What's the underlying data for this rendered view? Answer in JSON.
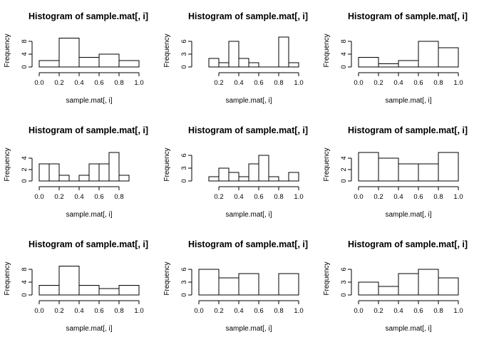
{
  "chart_data": [
    {
      "type": "bar",
      "title": "Histogram of sample.mat[, i]",
      "xlabel": "sample.mat[, i]",
      "ylabel": "Frequency",
      "breaks": [
        0.0,
        0.2,
        0.4,
        0.6,
        0.8,
        1.0
      ],
      "values": [
        2,
        9,
        3,
        4,
        2
      ],
      "x_ticks": [
        0.0,
        0.2,
        0.4,
        0.6,
        0.8,
        1.0
      ],
      "x_tick_labels": [
        "0.0",
        "0.2",
        "0.4",
        "0.6",
        "0.8",
        "1.0"
      ],
      "y_ticks": [
        0,
        4,
        8
      ],
      "y_tick_labels": [
        "0",
        "4",
        "8"
      ]
    },
    {
      "type": "bar",
      "title": "Histogram of sample.mat[, i]",
      "xlabel": "sample.mat[, i]",
      "ylabel": "Frequency",
      "breaks": [
        0.1,
        0.2,
        0.3,
        0.4,
        0.5,
        0.6,
        0.7,
        0.8,
        0.9,
        1.0
      ],
      "values": [
        2,
        1,
        6,
        2,
        1,
        0,
        0,
        7,
        1
      ],
      "x_ticks": [
        0.2,
        0.4,
        0.6,
        0.8,
        1.0
      ],
      "x_tick_labels": [
        "0.2",
        "0.4",
        "0.6",
        "0.8",
        "1.0"
      ],
      "y_ticks": [
        0,
        3,
        6
      ],
      "y_tick_labels": [
        "0",
        "3",
        "6"
      ]
    },
    {
      "type": "bar",
      "title": "Histogram of sample.mat[, i]",
      "xlabel": "sample.mat[, i]",
      "ylabel": "Frequency",
      "breaks": [
        0.0,
        0.2,
        0.4,
        0.6,
        0.8,
        1.0
      ],
      "values": [
        3,
        1,
        2,
        8,
        6
      ],
      "x_ticks": [
        0.0,
        0.2,
        0.4,
        0.6,
        0.8,
        1.0
      ],
      "x_tick_labels": [
        "0.0",
        "0.2",
        "0.4",
        "0.6",
        "0.8",
        "1.0"
      ],
      "y_ticks": [
        0,
        4,
        8
      ],
      "y_tick_labels": [
        "0",
        "4",
        "8"
      ]
    },
    {
      "type": "bar",
      "title": "Histogram of sample.mat[, i]",
      "xlabel": "sample.mat[, i]",
      "ylabel": "Frequency",
      "breaks": [
        0.0,
        0.1,
        0.2,
        0.3,
        0.4,
        0.5,
        0.6,
        0.7,
        0.8,
        0.9
      ],
      "values": [
        3,
        3,
        1,
        0,
        1,
        3,
        3,
        5,
        1
      ],
      "x_ticks": [
        0.0,
        0.2,
        0.4,
        0.6,
        0.8
      ],
      "x_tick_labels": [
        "0.0",
        "0.2",
        "0.4",
        "0.6",
        "0.8"
      ],
      "y_ticks": [
        0,
        2,
        4
      ],
      "y_tick_labels": [
        "0",
        "2",
        "4"
      ]
    },
    {
      "type": "bar",
      "title": "Histogram of sample.mat[, i]",
      "xlabel": "sample.mat[, i]",
      "ylabel": "Frequency",
      "breaks": [
        0.1,
        0.2,
        0.3,
        0.4,
        0.5,
        0.6,
        0.7,
        0.8,
        0.9,
        1.0
      ],
      "values": [
        1,
        3,
        2,
        1,
        4,
        6,
        1,
        0,
        2
      ],
      "x_ticks": [
        0.2,
        0.4,
        0.6,
        0.8,
        1.0
      ],
      "x_tick_labels": [
        "0.2",
        "0.4",
        "0.6",
        "0.8",
        "1.0"
      ],
      "y_ticks": [
        0,
        3,
        6
      ],
      "y_tick_labels": [
        "0",
        "3",
        "6"
      ]
    },
    {
      "type": "bar",
      "title": "Histogram of sample.mat[, i]",
      "xlabel": "sample.mat[, i]",
      "ylabel": "Frequency",
      "breaks": [
        0.0,
        0.2,
        0.4,
        0.6,
        0.8,
        1.0
      ],
      "values": [
        5,
        4,
        3,
        3,
        5
      ],
      "x_ticks": [
        0.0,
        0.2,
        0.4,
        0.6,
        0.8,
        1.0
      ],
      "x_tick_labels": [
        "0.0",
        "0.2",
        "0.4",
        "0.6",
        "0.8",
        "1.0"
      ],
      "y_ticks": [
        0,
        2,
        4
      ],
      "y_tick_labels": [
        "0",
        "2",
        "4"
      ]
    },
    {
      "type": "bar",
      "title": "Histogram of sample.mat[, i]",
      "xlabel": "sample.mat[, i]",
      "ylabel": "Frequency",
      "breaks": [
        0.0,
        0.2,
        0.4,
        0.6,
        0.8,
        1.0
      ],
      "values": [
        3,
        9,
        3,
        2,
        3
      ],
      "x_ticks": [
        0.0,
        0.2,
        0.4,
        0.6,
        0.8,
        1.0
      ],
      "x_tick_labels": [
        "0.0",
        "0.2",
        "0.4",
        "0.6",
        "0.8",
        "1.0"
      ],
      "y_ticks": [
        0,
        4,
        8
      ],
      "y_tick_labels": [
        "0",
        "4",
        "8"
      ]
    },
    {
      "type": "bar",
      "title": "Histogram of sample.mat[, i]",
      "xlabel": "sample.mat[, i]",
      "ylabel": "Frequency",
      "breaks": [
        0.0,
        0.2,
        0.4,
        0.6,
        0.8,
        1.0
      ],
      "values": [
        6,
        4,
        5,
        0,
        5
      ],
      "x_ticks": [
        0.0,
        0.2,
        0.4,
        0.6,
        0.8,
        1.0
      ],
      "x_tick_labels": [
        "0.0",
        "0.2",
        "0.4",
        "0.6",
        "0.8",
        "1.0"
      ],
      "y_ticks": [
        0,
        3,
        6
      ],
      "y_tick_labels": [
        "0",
        "3",
        "6"
      ]
    },
    {
      "type": "bar",
      "title": "Histogram of sample.mat[, i]",
      "xlabel": "sample.mat[, i]",
      "ylabel": "Frequency",
      "breaks": [
        0.0,
        0.2,
        0.4,
        0.6,
        0.8,
        1.0
      ],
      "values": [
        3,
        2,
        5,
        6,
        4
      ],
      "x_ticks": [
        0.0,
        0.2,
        0.4,
        0.6,
        0.8,
        1.0
      ],
      "x_tick_labels": [
        "0.0",
        "0.2",
        "0.4",
        "0.6",
        "0.8",
        "1.0"
      ],
      "y_ticks": [
        0,
        3,
        6
      ],
      "y_tick_labels": [
        "0",
        "3",
        "6"
      ]
    }
  ]
}
